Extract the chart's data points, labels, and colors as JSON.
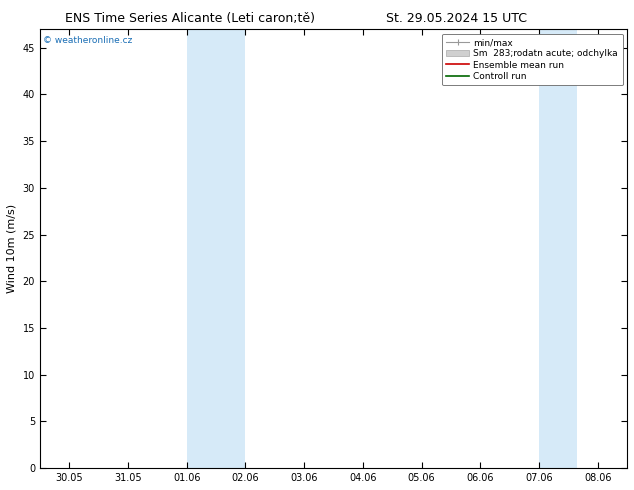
{
  "title_left": "ENS Time Series Alicante (Leti caron;tě)",
  "title_right": "St. 29.05.2024 15 UTC",
  "ylabel": "Wind 10m (m/s)",
  "watermark": "© weatheronline.cz",
  "xtick_labels": [
    "30.05",
    "31.05",
    "01.06",
    "02.06",
    "03.06",
    "04.06",
    "05.06",
    "06.06",
    "07.06",
    "08.06"
  ],
  "ylim": [
    0,
    47
  ],
  "yticks": [
    0,
    5,
    10,
    15,
    20,
    25,
    30,
    35,
    40,
    45
  ],
  "shaded_bands": [
    {
      "xmin": 2,
      "xmax": 3
    },
    {
      "xmin": 8,
      "xmax": 8.65
    }
  ],
  "shade_color": "#d6eaf8",
  "bg_color": "#ffffff",
  "title_fontsize": 9,
  "tick_fontsize": 7,
  "label_fontsize": 8,
  "watermark_color": "#1a6eb5",
  "spine_color": "#333333"
}
